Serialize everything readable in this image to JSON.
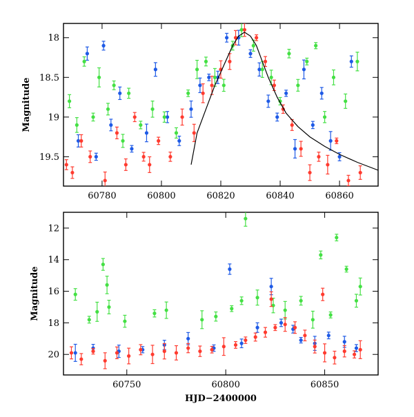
{
  "chart_data": [
    {
      "type": "scatter",
      "title": "",
      "xlabel": "",
      "ylabel": "Magnitude",
      "xlim": [
        60767,
        60873
      ],
      "ylim": [
        19.87,
        17.82
      ],
      "y_inverted": true,
      "grid": false,
      "xticks": [
        60780,
        60800,
        60820,
        60840,
        60860
      ],
      "xtick_labels": [
        "60780",
        "60800",
        "60820",
        "60840",
        "60860"
      ],
      "yticks": [
        18,
        18.5,
        19,
        19.5
      ],
      "ytick_labels": [
        "18",
        "18.5",
        "19",
        "19.5"
      ],
      "colors": {
        "red": "#ff3b2f",
        "green": "#44e044",
        "blue": "#1e5ae6",
        "model": "#000000"
      },
      "series": [
        {
          "color_key": "blue",
          "x": [
            60772.0,
            60775.0,
            60778.0,
            60780.5,
            60783.0,
            60786.0,
            60790.0,
            60795.0,
            60798.0,
            60802.0,
            60806.0,
            60810.0,
            60813.0,
            60816.0,
            60819.0,
            60822.0,
            60826.0,
            60830.0,
            60833.0,
            60836.0,
            60839.0,
            60842.0,
            60845.0,
            60848.0,
            60851.0,
            60854.0,
            60857.0,
            60860.0,
            60864.0
          ],
          "y": [
            19.3,
            18.2,
            19.5,
            18.1,
            19.1,
            18.7,
            19.4,
            19.2,
            18.4,
            19.0,
            19.3,
            18.9,
            18.6,
            18.5,
            18.5,
            18.0,
            18.0,
            18.2,
            18.4,
            18.8,
            19.0,
            18.7,
            19.4,
            18.4,
            19.1,
            18.7,
            19.3,
            19.5,
            18.3
          ]
        },
        {
          "color_key": "green",
          "x": [
            60769.0,
            60771.5,
            60774.0,
            60777.0,
            60779.0,
            60782.0,
            60784.0,
            60787.0,
            60789.0,
            60793.0,
            60797.0,
            60801.0,
            60805.0,
            60809.0,
            60812.0,
            60815.0,
            60818.0,
            60821.0,
            60824.0,
            60827.0,
            60831.0,
            60834.0,
            60837.0,
            60840.0,
            60843.0,
            60846.0,
            60849.0,
            60852.0,
            60855.0,
            60858.0,
            60862.0,
            60866.0
          ],
          "y": [
            18.8,
            19.1,
            18.3,
            19.0,
            18.5,
            18.9,
            18.6,
            19.3,
            18.7,
            19.1,
            18.9,
            19.0,
            19.2,
            18.7,
            18.4,
            18.3,
            18.5,
            18.6,
            18.1,
            17.9,
            18.1,
            18.4,
            18.5,
            18.8,
            18.2,
            18.6,
            18.3,
            18.1,
            19.0,
            18.5,
            18.8,
            18.3
          ]
        },
        {
          "color_key": "red",
          "x": [
            60768.0,
            60770.0,
            60773.0,
            60776.0,
            60781.0,
            60785.0,
            60788.0,
            60791.0,
            60794.0,
            60796.0,
            60799.0,
            60803.0,
            60807.0,
            60811.0,
            60814.0,
            60817.0,
            60820.0,
            60823.0,
            60825.0,
            60828.0,
            60832.0,
            60835.0,
            60838.0,
            60841.0,
            60844.0,
            60847.0,
            60850.0,
            60853.0,
            60856.0,
            60859.0,
            60863.0,
            60867.0
          ],
          "y": [
            19.6,
            19.7,
            19.3,
            19.5,
            19.8,
            19.2,
            19.6,
            19.0,
            19.5,
            19.6,
            19.3,
            19.5,
            19.0,
            19.2,
            18.7,
            18.6,
            18.4,
            18.3,
            18.0,
            17.9,
            18.0,
            18.3,
            18.6,
            18.9,
            19.1,
            19.4,
            19.7,
            19.5,
            19.6,
            19.3,
            19.8,
            19.7
          ]
        }
      ],
      "model_curve": {
        "color_key": "model",
        "x": [
          60810.0,
          60812.0,
          60815.0,
          60818.0,
          60821.0,
          60824.0,
          60826.0,
          60828.0,
          60830.0,
          60832.0,
          60834.0,
          60836.0,
          60839.0,
          60842.0,
          60846.0,
          60850.0,
          60855.0,
          60860.0,
          60866.0,
          60873.0
        ],
        "y": [
          19.6,
          19.2,
          18.9,
          18.6,
          18.35,
          18.1,
          17.98,
          17.93,
          17.98,
          18.1,
          18.3,
          18.5,
          18.75,
          18.95,
          19.12,
          19.25,
          19.37,
          19.47,
          19.57,
          19.67
        ]
      }
    },
    {
      "type": "scatter",
      "title": "",
      "xlabel": "HJD−2400000",
      "ylabel": "Magnitude",
      "xlim": [
        60718,
        60877
      ],
      "ylim": [
        21.3,
        11.0
      ],
      "y_inverted": true,
      "grid": false,
      "xticks": [
        60750,
        60800,
        60850
      ],
      "xtick_labels": [
        "60750",
        "60800",
        "60850"
      ],
      "yticks": [
        12,
        14,
        16,
        18,
        20
      ],
      "ytick_labels": [
        "12",
        "14",
        "16",
        "18",
        "20"
      ],
      "colors": {
        "red": "#ff3b2f",
        "green": "#44e044",
        "blue": "#1e5ae6"
      },
      "series": [
        {
          "color_key": "green",
          "x": [
            60724.0,
            60731.0,
            60735.0,
            60738.0,
            60740.0,
            60741.0,
            60749.0,
            60764.0,
            60770.0,
            60788.0,
            60795.0,
            60803.0,
            60808.0,
            60810.0,
            60816.0,
            60824.0,
            60830.0,
            60838.0,
            60844.0,
            60848.0,
            60853.0,
            60856.0,
            60861.0,
            60866.0,
            60868.0
          ],
          "y": [
            16.2,
            17.8,
            17.3,
            14.3,
            15.6,
            17.0,
            17.9,
            17.4,
            17.2,
            17.8,
            17.6,
            17.1,
            16.6,
            11.4,
            16.4,
            16.9,
            17.2,
            16.6,
            17.8,
            13.7,
            17.5,
            12.6,
            14.6,
            16.6,
            15.7
          ]
        },
        {
          "color_key": "blue",
          "x": [
            60724.0,
            60733.0,
            60746.0,
            60758.0,
            60769.0,
            60781.0,
            60794.0,
            60802.0,
            60808.0,
            60816.0,
            60823.0,
            60828.0,
            60834.0,
            60838.0,
            60845.0,
            60852.0,
            60860.0,
            60866.0
          ],
          "y": [
            19.9,
            19.6,
            19.8,
            19.7,
            19.4,
            19.0,
            19.6,
            14.6,
            19.3,
            18.3,
            15.7,
            18.0,
            18.4,
            19.1,
            19.3,
            18.8,
            19.2,
            19.6
          ]
        },
        {
          "color_key": "red",
          "x": [
            60722.0,
            60727.0,
            60733.0,
            60739.0,
            60745.0,
            60751.0,
            60757.0,
            60763.0,
            60769.0,
            60775.0,
            60781.0,
            60787.0,
            60793.0,
            60799.0,
            60805.0,
            60810.0,
            60815.0,
            60820.0,
            60825.0,
            60830.0,
            60835.0,
            60840.0,
            60845.0,
            60850.0,
            60855.0,
            60860.0,
            60865.0,
            60868.0,
            60823.0,
            60849.0
          ],
          "y": [
            19.9,
            20.3,
            19.8,
            20.4,
            19.9,
            20.1,
            19.7,
            20.0,
            19.8,
            19.9,
            19.6,
            19.8,
            19.7,
            19.5,
            19.4,
            19.1,
            18.9,
            18.6,
            18.3,
            18.1,
            18.3,
            18.8,
            19.5,
            19.9,
            20.2,
            19.8,
            20.0,
            19.7,
            16.5,
            16.2
          ]
        }
      ]
    }
  ]
}
